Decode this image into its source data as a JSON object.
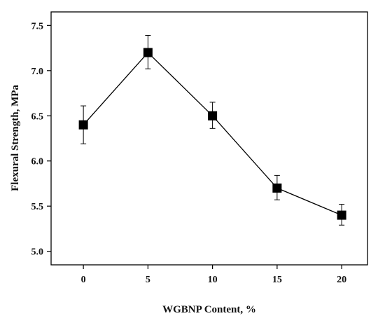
{
  "chart_data": {
    "type": "line",
    "x": [
      0,
      5,
      10,
      15,
      20
    ],
    "series": [
      {
        "values": [
          6.4,
          7.2,
          6.5,
          5.7,
          5.4
        ],
        "error_low": [
          6.19,
          7.02,
          6.36,
          5.57,
          5.29
        ],
        "error_high": [
          6.61,
          7.39,
          6.65,
          5.84,
          5.52
        ]
      }
    ],
    "xlabel": "WGBNP Content, %",
    "ylabel": "Flexural Strength, MPa",
    "xlim": [
      -2.5,
      22
    ],
    "ylim": [
      4.85,
      7.65
    ],
    "xticks": [
      0,
      5,
      10,
      15,
      20
    ],
    "yticks": [
      5.0,
      5.5,
      6.0,
      6.5,
      7.0,
      7.5
    ],
    "xtick_labels": [
      "0",
      "5",
      "10",
      "15",
      "20"
    ],
    "ytick_labels": [
      "5.0",
      "5.5",
      "6.0",
      "6.5",
      "7.0",
      "7.5"
    ],
    "grid": false,
    "marker": "square",
    "color": "#000000"
  }
}
